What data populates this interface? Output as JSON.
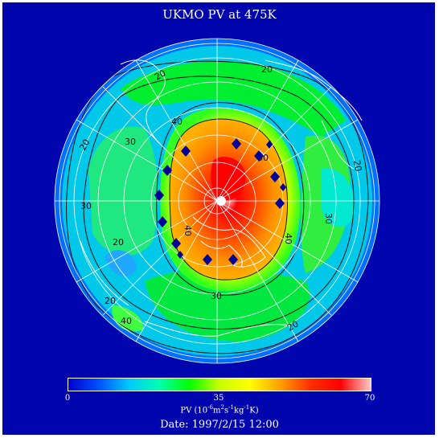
{
  "title": "UKMO PV at 475K",
  "date_label": "Date: 1997/2/15 12:00",
  "colorbar": {
    "label_parts": [
      "PV (10",
      "-6",
      "m",
      "2",
      "s",
      "-1",
      "kg",
      "-1",
      "K)"
    ],
    "ticks": [
      "0",
      "35",
      "70"
    ],
    "min": 0,
    "max": 70
  },
  "contours": {
    "levels": [
      20,
      30,
      40,
      50
    ],
    "color": "#111111"
  },
  "markers": {
    "shape": "diamond",
    "color": "#000099",
    "count": 14
  },
  "colors": {
    "background": "#0005ad",
    "graticule": "#ffffff",
    "coastline": "#ffffff",
    "colormap": [
      "#0000cc",
      "#0050ff",
      "#00c8ff",
      "#00ffb0",
      "#00ff00",
      "#c8ff00",
      "#ffff00",
      "#ffa000",
      "#ff3000",
      "#ff0000",
      "#ffc8c8"
    ]
  }
}
